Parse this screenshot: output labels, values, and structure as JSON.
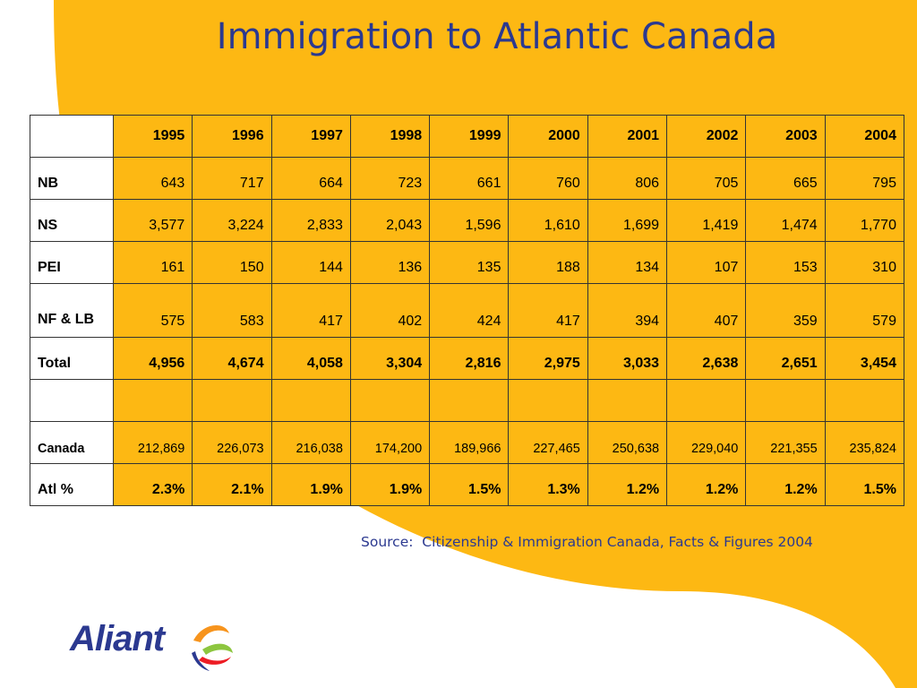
{
  "slide": {
    "title": "Immigration to Atlantic Canada",
    "source": "Source:  Citizenship & Immigration Canada, Facts & Figures 2004",
    "logo_text": "Aliant",
    "colors": {
      "background": "#ffffff",
      "accent_blob": "#fdb813",
      "title": "#2b3990",
      "table_fill": "#fdb813"
    }
  },
  "chart_data": {
    "type": "table",
    "title": "Immigration to Atlantic Canada",
    "columns": [
      "",
      "1995",
      "1996",
      "1997",
      "1998",
      "1999",
      "2000",
      "2001",
      "2002",
      "2003",
      "2004"
    ],
    "rows": [
      {
        "label": "NB",
        "values": [
          "643",
          "717",
          "664",
          "723",
          "661",
          "760",
          "806",
          "705",
          "665",
          "795"
        ]
      },
      {
        "label": "NS",
        "values": [
          "3,577",
          "3,224",
          "2,833",
          "2,043",
          "1,596",
          "1,610",
          "1,699",
          "1,419",
          "1,474",
          "1,770"
        ]
      },
      {
        "label": "PEI",
        "values": [
          "161",
          "150",
          "144",
          "136",
          "135",
          "188",
          "134",
          "107",
          "153",
          "310"
        ]
      },
      {
        "label": "NF & LB",
        "values": [
          "575",
          "583",
          "417",
          "402",
          "424",
          "417",
          "394",
          "407",
          "359",
          "579"
        ]
      },
      {
        "label": "Total",
        "values": [
          "4,956",
          "4,674",
          "4,058",
          "3,304",
          "2,816",
          "2,975",
          "3,033",
          "2,638",
          "2,651",
          "3,454"
        ]
      },
      {
        "label": "",
        "values": [
          "",
          "",
          "",
          "",
          "",
          "",
          "",
          "",
          "",
          ""
        ]
      },
      {
        "label": "Canada",
        "values": [
          "212,869",
          "226,073",
          "216,038",
          "174,200",
          "189,966",
          "227,465",
          "250,638",
          "229,040",
          "221,355",
          "235,824"
        ]
      },
      {
        "label": "Atl %",
        "values": [
          "2.3%",
          "2.1%",
          "1.9%",
          "1.9%",
          "1.5%",
          "1.3%",
          "1.2%",
          "1.2%",
          "1.2%",
          "1.5%"
        ]
      }
    ]
  }
}
